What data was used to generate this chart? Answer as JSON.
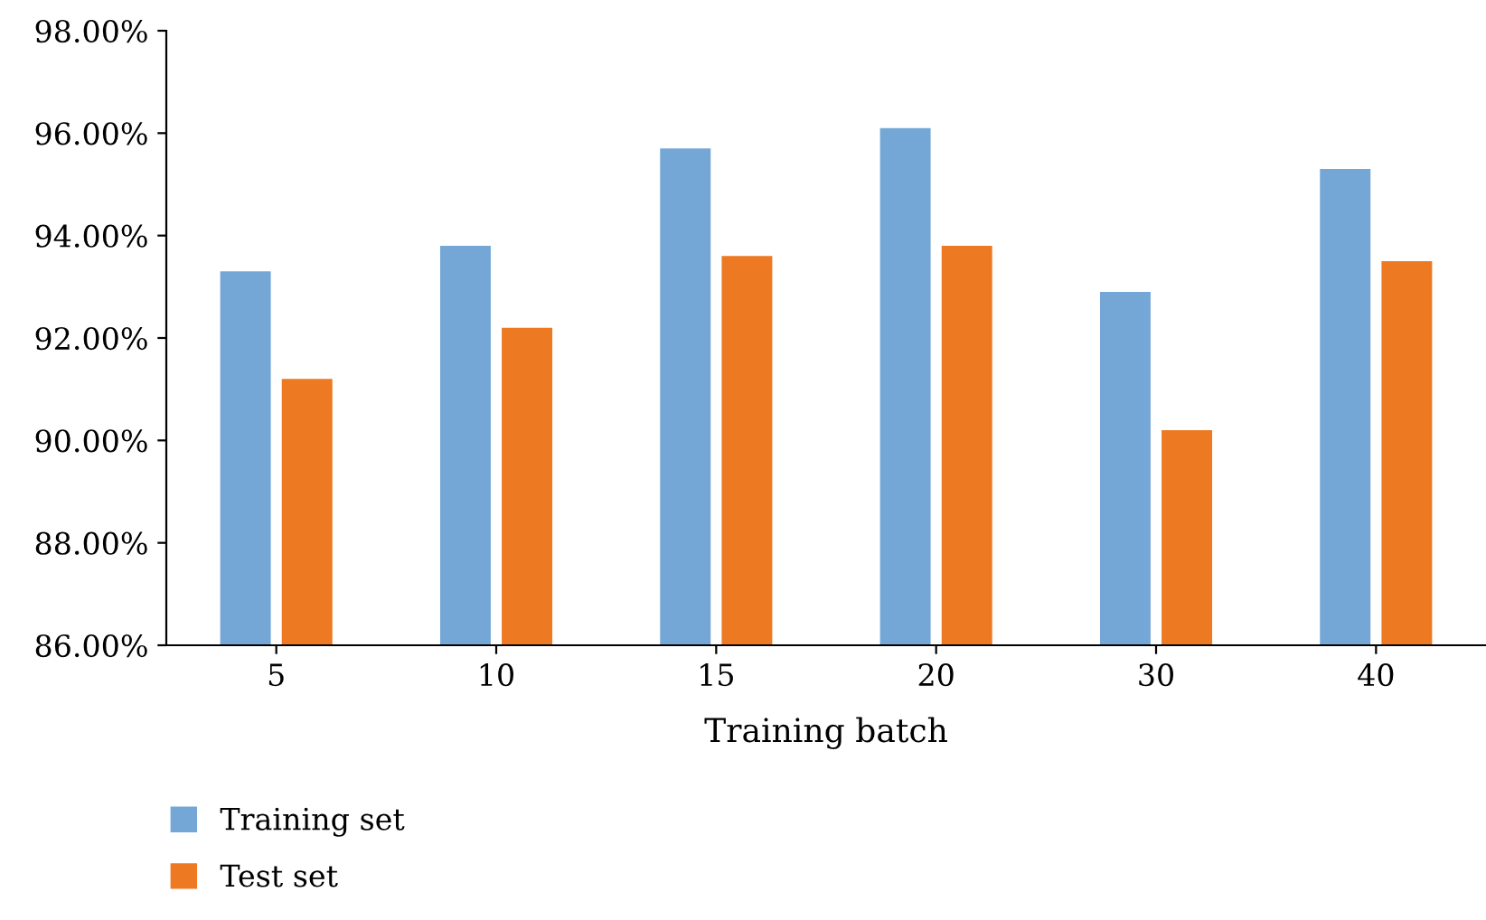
{
  "chart_data": {
    "type": "bar",
    "xlabel": "Training batch",
    "categories": [
      "5",
      "10",
      "15",
      "20",
      "30",
      "40"
    ],
    "series": [
      {
        "name": "Training set",
        "color": "#74a6d6",
        "values": [
          93.3,
          93.8,
          95.7,
          96.1,
          92.9,
          95.3
        ]
      },
      {
        "name": "Test set",
        "color": "#ed7a23",
        "values": [
          91.2,
          92.2,
          93.6,
          93.8,
          90.2,
          93.5
        ]
      }
    ],
    "ylim": [
      86,
      98
    ],
    "yticks": [
      {
        "value": 86,
        "label": "86.00%"
      },
      {
        "value": 88,
        "label": "88.00%"
      },
      {
        "value": 90,
        "label": "90.00%"
      },
      {
        "value": 92,
        "label": "92.00%"
      },
      {
        "value": 94,
        "label": "94.00%"
      },
      {
        "value": 96,
        "label": "96.00%"
      },
      {
        "value": 98,
        "label": "98.00%"
      }
    ],
    "grid": false,
    "legend": "bottom left"
  }
}
